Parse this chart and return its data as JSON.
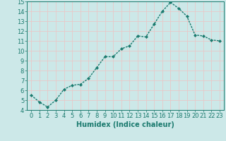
{
  "x": [
    0,
    1,
    2,
    3,
    4,
    5,
    6,
    7,
    8,
    9,
    10,
    11,
    12,
    13,
    14,
    15,
    16,
    17,
    18,
    19,
    20,
    21,
    22,
    23
  ],
  "y": [
    5.5,
    4.8,
    4.3,
    5.0,
    6.1,
    6.5,
    6.6,
    7.2,
    8.3,
    9.4,
    9.4,
    10.2,
    10.5,
    11.5,
    11.4,
    12.7,
    14.0,
    14.9,
    14.3,
    13.5,
    11.6,
    11.5,
    11.1,
    11.0
  ],
  "xlabel": "Humidex (Indice chaleur)",
  "ylim": [
    4,
    15
  ],
  "xlim": [
    -0.5,
    23.5
  ],
  "yticks": [
    4,
    5,
    6,
    7,
    8,
    9,
    10,
    11,
    12,
    13,
    14,
    15
  ],
  "xticks": [
    0,
    1,
    2,
    3,
    4,
    5,
    6,
    7,
    8,
    9,
    10,
    11,
    12,
    13,
    14,
    15,
    16,
    17,
    18,
    19,
    20,
    21,
    22,
    23
  ],
  "line_color": "#1a7a6e",
  "bg_color": "#cce8e8",
  "grid_color": "#e8c8c8",
  "marker": "D",
  "marker_size": 2.0,
  "line_width": 1.0,
  "xlabel_fontsize": 7,
  "tick_fontsize": 6
}
